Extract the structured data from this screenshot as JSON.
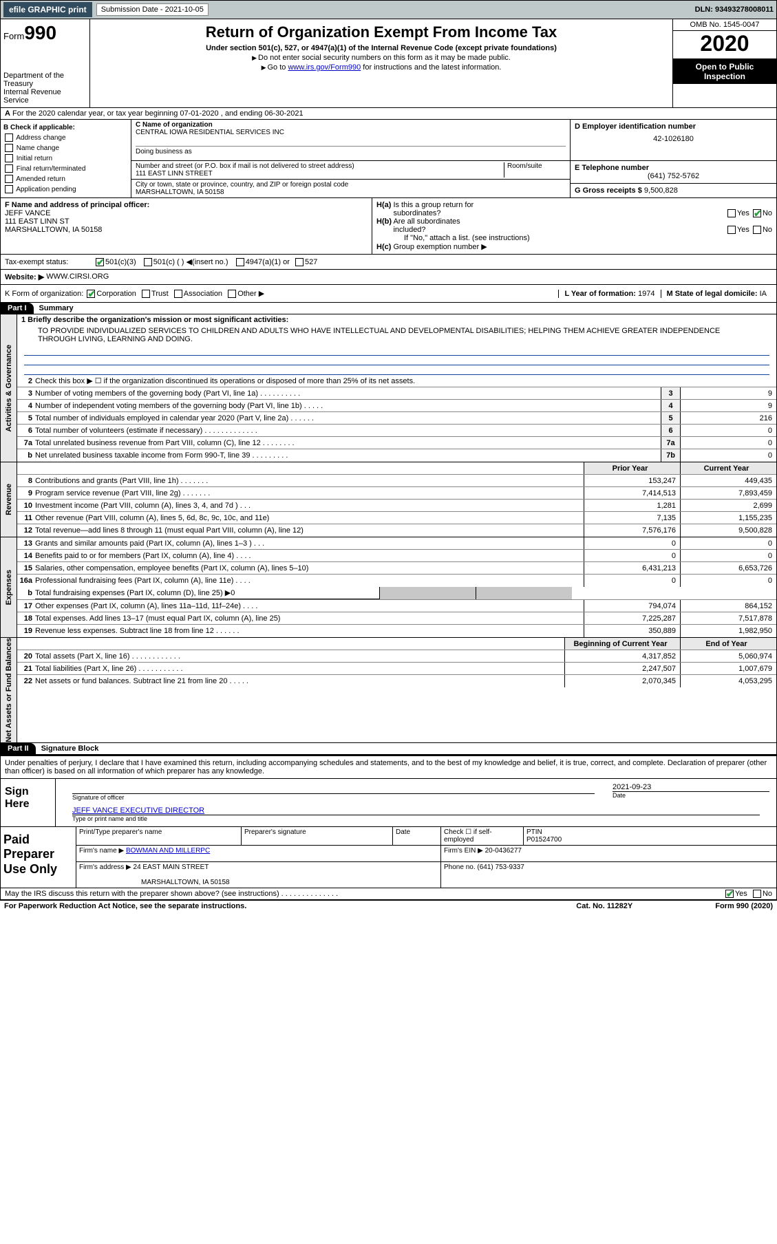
{
  "topbar": {
    "efile": "efile GRAPHIC print",
    "sub_label": "Submission Date - 2021-10-05",
    "dln": "DLN: 93493278008011"
  },
  "header": {
    "form_prefix": "Form",
    "form_num": "990",
    "dept": "Department of the Treasury\nInternal Revenue Service",
    "title": "Return of Organization Exempt From Income Tax",
    "subtitle": "Under section 501(c), 527, or 4947(a)(1) of the Internal Revenue Code (except private foundations)",
    "note1": "Do not enter social security numbers on this form as it may be made public.",
    "note2_pre": "Go to ",
    "note2_link": "www.irs.gov/Form990",
    "note2_post": " for instructions and the latest information.",
    "omb": "OMB No. 1545-0047",
    "year": "2020",
    "open": "Open to Public Inspection"
  },
  "lineA": "For the 2020 calendar year, or tax year beginning 07-01-2020    , and ending 06-30-2021",
  "boxB": {
    "label": "B Check if applicable:",
    "items": [
      "Address change",
      "Name change",
      "Initial return",
      "Final return/terminated",
      "Amended return",
      "Application pending"
    ]
  },
  "boxC": {
    "name_lbl": "C Name of organization",
    "name": "CENTRAL IOWA RESIDENTIAL SERVICES INC",
    "dba_lbl": "Doing business as",
    "addr_lbl": "Number and street (or P.O. box if mail is not delivered to street address)",
    "room_lbl": "Room/suite",
    "addr": "111 EAST LINN STREET",
    "city_lbl": "City or town, state or province, country, and ZIP or foreign postal code",
    "city": "MARSHALLTOWN, IA  50158"
  },
  "boxD": {
    "lbl": "D Employer identification number",
    "val": "42-1026180"
  },
  "boxE": {
    "lbl": "E Telephone number",
    "val": "(641) 752-5762"
  },
  "boxG": {
    "lbl": "G Gross receipts $",
    "val": "9,500,828"
  },
  "boxF": {
    "lbl": "F  Name and address of principal officer:",
    "name": "JEFF VANCE",
    "addr1": "111 EAST LINN ST",
    "addr2": "MARSHALLTOWN, IA  50158"
  },
  "boxH": {
    "ha": "H(a)  Is this a group return for subordinates?",
    "hb": "H(b)  Are all subordinates included?",
    "hb_note": "If \"No,\" attach a list. (see instructions)",
    "hc": "H(c)  Group exemption number ▶"
  },
  "taxexempt": "Tax-exempt status:",
  "tx_opts": [
    "501(c)(3)",
    "501(c) (  ) ◀(insert no.)",
    "4947(a)(1) or",
    "527"
  ],
  "websiteI_lbl": "Website: ▶",
  "websiteI": "WWW.CIRSI.ORG",
  "lineK": "K Form of organization:",
  "k_opts": [
    "Corporation",
    "Trust",
    "Association",
    "Other ▶"
  ],
  "lineL": {
    "lbl": "L Year of formation:",
    "val": "1974"
  },
  "lineM": {
    "lbl": "M State of legal domicile:",
    "val": "IA"
  },
  "partI": {
    "hdr": "Part I",
    "title": "Summary"
  },
  "mission_lbl": "1  Briefly describe the organization's mission or most significant activities:",
  "mission": "TO PROVIDE INDIVIDUALIZED SERVICES TO CHILDREN AND ADULTS WHO HAVE INTELLECTUAL AND DEVELOPMENTAL DISABILITIES; HELPING THEM ACHIEVE GREATER INDEPENDENCE THROUGH LIVING, LEARNING AND DOING.",
  "line2": "Check this box ▶ ☐  if the organization discontinued its operations or disposed of more than 25% of its net assets.",
  "gov_rows": [
    {
      "n": "3",
      "d": "Number of voting members of the governing body (Part VI, line 1a)  .   .   .   .   .   .   .   .   .   .",
      "c": "3",
      "v": "9"
    },
    {
      "n": "4",
      "d": "Number of independent voting members of the governing body (Part VI, line 1b)  .   .   .   .   .",
      "c": "4",
      "v": "9"
    },
    {
      "n": "5",
      "d": "Total number of individuals employed in calendar year 2020 (Part V, line 2a)  .   .   .   .   .   .",
      "c": "5",
      "v": "216"
    },
    {
      "n": "6",
      "d": "Total number of volunteers (estimate if necessary)   .   .   .   .   .   .   .   .   .   .   .   .   .",
      "c": "6",
      "v": "0"
    },
    {
      "n": "7a",
      "d": "Total unrelated business revenue from Part VIII, column (C), line 12  .   .   .   .   .   .   .   .",
      "c": "7a",
      "v": "0"
    },
    {
      "n": "b",
      "d": "Net unrelated business taxable income from Form 990-T, line 39   .   .   .   .   .   .   .   .   .",
      "c": "7b",
      "v": "0"
    }
  ],
  "col_hdrs": {
    "py": "Prior Year",
    "cy": "Current Year"
  },
  "rev_rows": [
    {
      "n": "8",
      "d": "Contributions and grants (Part VIII, line 1h)   .   .   .   .   .   .   .",
      "py": "153,247",
      "cy": "449,435"
    },
    {
      "n": "9",
      "d": "Program service revenue (Part VIII, line 2g)   .   .   .   .   .   .   .",
      "py": "7,414,513",
      "cy": "7,893,459"
    },
    {
      "n": "10",
      "d": "Investment income (Part VIII, column (A), lines 3, 4, and 7d )   .   .   .",
      "py": "1,281",
      "cy": "2,699"
    },
    {
      "n": "11",
      "d": "Other revenue (Part VIII, column (A), lines 5, 6d, 8c, 9c, 10c, and 11e)",
      "py": "7,135",
      "cy": "1,155,235"
    },
    {
      "n": "12",
      "d": "Total revenue—add lines 8 through 11 (must equal Part VIII, column (A), line 12)",
      "py": "7,576,176",
      "cy": "9,500,828"
    }
  ],
  "exp_rows": [
    {
      "n": "13",
      "d": "Grants and similar amounts paid (Part IX, column (A), lines 1–3 )  .   .   .",
      "py": "0",
      "cy": "0"
    },
    {
      "n": "14",
      "d": "Benefits paid to or for members (Part IX, column (A), line 4)  .   .   .   .",
      "py": "0",
      "cy": "0"
    },
    {
      "n": "15",
      "d": "Salaries, other compensation, employee benefits (Part IX, column (A), lines 5–10)",
      "py": "6,431,213",
      "cy": "6,653,726"
    },
    {
      "n": "16a",
      "d": "Professional fundraising fees (Part IX, column (A), line 11e)  .   .   .   .",
      "py": "0",
      "cy": "0"
    }
  ],
  "line16b": "Total fundraising expenses (Part IX, column (D), line 25) ▶0",
  "exp_rows2": [
    {
      "n": "17",
      "d": "Other expenses (Part IX, column (A), lines 11a–11d, 11f–24e)  .   .   .   .",
      "py": "794,074",
      "cy": "864,152"
    },
    {
      "n": "18",
      "d": "Total expenses. Add lines 13–17 (must equal Part IX, column (A), line 25)",
      "py": "7,225,287",
      "cy": "7,517,878"
    },
    {
      "n": "19",
      "d": "Revenue less expenses. Subtract line 18 from line 12  .   .   .   .   .   .",
      "py": "350,889",
      "cy": "1,982,950"
    }
  ],
  "net_hdrs": {
    "b": "Beginning of Current Year",
    "e": "End of Year"
  },
  "net_rows": [
    {
      "n": "20",
      "d": "Total assets (Part X, line 16)  .   .   .   .   .   .   .   .   .   .   .   .",
      "py": "4,317,852",
      "cy": "5,060,974"
    },
    {
      "n": "21",
      "d": "Total liabilities (Part X, line 26)  .   .   .   .   .   .   .   .   .   .   .",
      "py": "2,247,507",
      "cy": "1,007,679"
    },
    {
      "n": "22",
      "d": "Net assets or fund balances. Subtract line 21 from line 20  .   .   .   .   .",
      "py": "2,070,345",
      "cy": "4,053,295"
    }
  ],
  "partII": {
    "hdr": "Part II",
    "title": "Signature Block"
  },
  "sig_decl": "Under penalties of perjury, I declare that I have examined this return, including accompanying schedules and statements, and to the best of my knowledge and belief, it is true, correct, and complete. Declaration of preparer (other than officer) is based on all information of which preparer has any knowledge.",
  "sign_here": "Sign Here",
  "sig_officer_lbl": "Signature of officer",
  "sig_date_lbl": "Date",
  "sig_date": "2021-09-23",
  "sig_name": "JEFF VANCE  EXECUTIVE DIRECTOR",
  "sig_name_lbl": "Type or print name and title",
  "paid_prep": "Paid Preparer Use Only",
  "prep": {
    "name_lbl": "Print/Type preparer's name",
    "sig_lbl": "Preparer's signature",
    "date_lbl": "Date",
    "check_lbl": "Check ☐ if self-employed",
    "ptin_lbl": "PTIN",
    "ptin": "P01524700",
    "firm_name_lbl": "Firm's name    ▶",
    "firm_name": "BOWMAN AND MILLERPC",
    "firm_ein_lbl": "Firm's EIN ▶",
    "firm_ein": "20-0436277",
    "firm_addr_lbl": "Firm's address ▶",
    "firm_addr1": "24 EAST MAIN STREET",
    "firm_addr2": "MARSHALLTOWN, IA  50158",
    "phone_lbl": "Phone no.",
    "phone": "(641) 753-9337"
  },
  "discuss": "May the IRS discuss this return with the preparer shown above? (see instructions)   .   .   .   .   .   .   .   .   .   .   .   .   .   .",
  "footer": {
    "paperwork": "For Paperwork Reduction Act Notice, see the separate instructions.",
    "cat": "Cat. No. 11282Y",
    "form": "Form 990 (2020)"
  },
  "side_labels": {
    "gov": "Activities & Governance",
    "rev": "Revenue",
    "exp": "Expenses",
    "net": "Net Assets or Fund Balances"
  },
  "yes": "Yes",
  "no": "No"
}
